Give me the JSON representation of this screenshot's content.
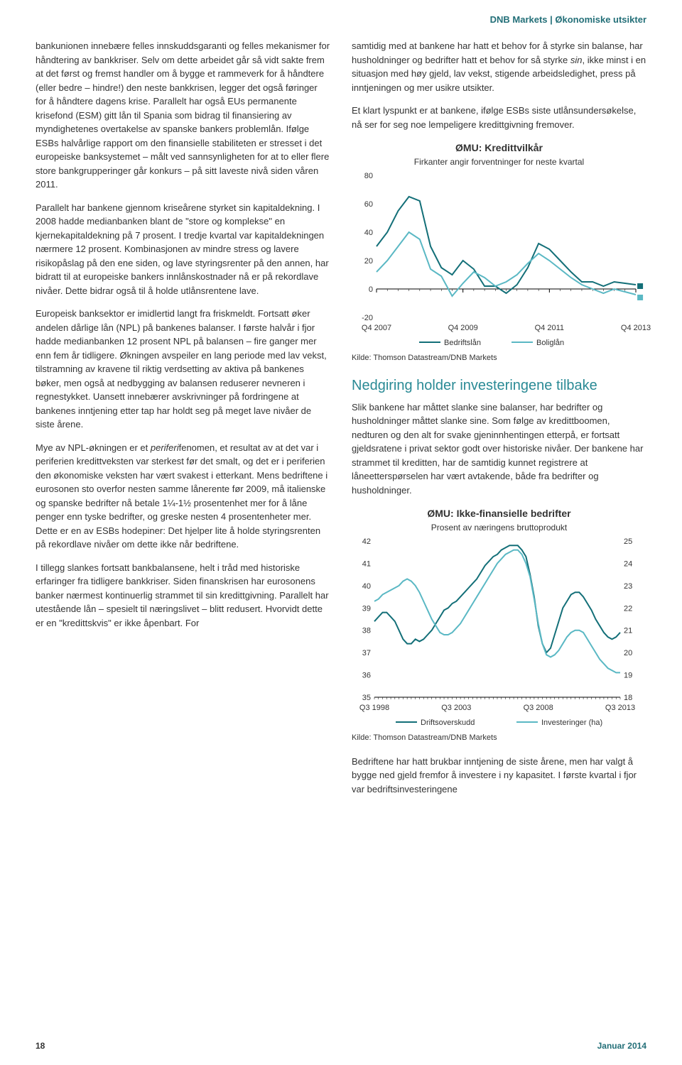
{
  "header": "DNB Markets | Økonomiske utsikter",
  "left": {
    "p1": "bankunionen innebære felles innskuddsgaranti og felles mekanismer for håndtering av bankkriser. Selv om dette arbeidet går så vidt sakte frem at det først og fremst handler om å bygge et rammeverk for å håndtere (eller bedre – hindre!) den neste bankkrisen, legger det også føringer for å håndtere dagens krise. Parallelt har også EUs permanente krisefond (ESM) gitt lån til Spania som bidrag til finansiering av myndighetenes overtakelse av spanske bankers problemlån. Ifølge ESBs halvårlige rapport om den finansielle stabiliteten er stresset i det europeiske banksystemet – målt ved sannsynligheten for at to eller flere store bankgrupperinger går konkurs – på sitt laveste nivå siden våren 2011.",
    "p2": "Parallelt har bankene gjennom kriseårene styrket sin kapitaldekning. I 2008 hadde medianbanken blant de \"store og komplekse\" en kjernekapitaldekning på 7 prosent. I tredje kvartal var kapitaldekningen nærmere 12 prosent. Kombinasjonen av mindre stress og lavere risikopåslag på den ene siden, og lave styringsrenter på den annen, har bidratt til at europeiske bankers innlånskostnader nå er på rekordlave nivåer. Dette bidrar også til å holde utlånsrentene lave.",
    "p3": "Europeisk banksektor er imidlertid langt fra friskmeldt. Fortsatt øker andelen dårlige lån (NPL) på bankenes balanser. I første halvår i fjor hadde medianbanken 12 prosent NPL på balansen – fire ganger mer enn fem år tidligere. Økningen avspeiler en lang periode med lav vekst, tilstramning av kravene til riktig verdsetting av aktiva på bankenes bøker, men også at nedbygging av balansen reduserer nevneren i regnestykket. Uansett innebærer avskrivninger på fordringene at bankenes inntjening etter tap har holdt seg på meget lave nivåer de siste årene.",
    "p4_html": "Mye av NPL-økningen er et <i>periferi</i>fenomen, et resultat av at det var i periferien kredittveksten var sterkest før det smalt, og det er i periferien den økonomiske veksten har vært svakest i etterkant. Mens bedriftene i eurosonen sto overfor nesten samme lånerente før 2009, må italienske og spanske bedrifter nå betale 1¼-1½ prosentenhet mer for å låne penger enn tyske bedrifter, og greske nesten 4 prosentenheter mer. Dette er en av ESBs hodepiner: Det hjelper lite å holde styringsrenten på rekordlave nivåer om dette ikke når bedriftene.",
    "p5": "I tillegg slankes fortsatt bankbalansene, helt i tråd med historiske erfaringer fra tidligere bankkriser. Siden finanskrisen har eurosonens banker nærmest kontinuerlig strammet til sin kredittgivning. Parallelt har utestående lån – spesielt til næringslivet – blitt redusert. Hvorvidt dette er en \"kredittskvis\" er ikke åpenbart. For"
  },
  "right": {
    "p1_html": "samtidig med at bankene har hatt et behov for å styrke sin balanse, har husholdninger og bedrifter hatt et behov for så styrke <i>sin</i>, ikke minst i en situasjon med høy gjeld, lav vekst, stigende arbeidsledighet, press på inntjeningen og mer usikre utsikter.",
    "p2": "Et klart lyspunkt er at bankene, ifølge ESBs siste utlånsundersøkelse, nå ser for seg noe lempeligere kredittgivning fremover.",
    "p3": "Slik bankene har måttet slanke sine balanser, har bedrifter og husholdninger måttet slanke sine. Som følge av kredittboomen, nedturen og den alt for svake gjeninnhentingen etterpå, er fortsatt gjeldsratene i privat sektor godt over historiske nivåer. Der bankene har strammet til kreditten, har de samtidig kunnet registrere at låneetterspørselen har vært avtakende, både fra bedrifter og husholdninger.",
    "p4": "Bedriftene har hatt brukbar inntjening de siste årene, men har valgt å bygge ned gjeld fremfor å investere i ny kapasitet. I første kvartal i fjor var bedriftsinvesteringene",
    "heading": "Nedgiring holder investeringene tilbake"
  },
  "chart1": {
    "title": "ØMU: Kredittvilkår",
    "subtitle": "Firkanter angir forventninger for neste kvartal",
    "source": "Kilde: Thomson Datastream/DNB Markets",
    "ylim": [
      -20,
      80
    ],
    "yticks": [
      -20,
      0,
      20,
      40,
      60,
      80
    ],
    "xticks": [
      "Q4 2007",
      "Q4 2009",
      "Q4 2011",
      "Q4 2013"
    ],
    "x_count": 25,
    "series": [
      {
        "name": "Bedriftslån",
        "color": "#136f78",
        "y": [
          30,
          40,
          55,
          65,
          62,
          30,
          15,
          10,
          20,
          14,
          2,
          2,
          -3,
          3,
          15,
          32,
          28,
          20,
          12,
          5,
          5,
          2,
          5,
          4,
          3
        ]
      },
      {
        "name": "Boliglån",
        "color": "#5ab8c4",
        "y": [
          12,
          20,
          30,
          40,
          35,
          14,
          9,
          -5,
          4,
          12,
          8,
          2,
          5,
          10,
          18,
          25,
          20,
          14,
          8,
          3,
          0,
          -3,
          0,
          -2,
          -4
        ]
      }
    ],
    "markers": [
      {
        "color": "#136f78",
        "x": 24.4,
        "y": 2
      },
      {
        "color": "#5ab8c4",
        "x": 24.4,
        "y": -6
      }
    ],
    "background": "#ffffff",
    "grid_color": "#000000"
  },
  "chart2": {
    "title": "ØMU: Ikke-finansielle bedrifter",
    "subtitle": "Prosent av næringens bruttoprodukt",
    "source": "Kilde: Thomson Datastream/DNB Markets",
    "ylim_left": [
      35,
      42
    ],
    "yticks_left": [
      35,
      36,
      37,
      38,
      39,
      40,
      41,
      42
    ],
    "ylim_right": [
      18,
      25
    ],
    "yticks_right": [
      18,
      19,
      20,
      21,
      22,
      23,
      24,
      25
    ],
    "xticks": [
      "Q3 1998",
      "Q3 2003",
      "Q3 2008",
      "Q3 2013"
    ],
    "x_count": 61,
    "series": [
      {
        "name": "Driftsoverskudd",
        "color": "#136f78",
        "axis": "left",
        "y": [
          38.4,
          38.6,
          38.8,
          38.8,
          38.6,
          38.4,
          38.0,
          37.6,
          37.4,
          37.4,
          37.6,
          37.5,
          37.6,
          37.8,
          38.0,
          38.3,
          38.6,
          38.9,
          39.0,
          39.2,
          39.3,
          39.5,
          39.7,
          39.9,
          40.1,
          40.3,
          40.6,
          40.9,
          41.1,
          41.3,
          41.4,
          41.6,
          41.7,
          41.8,
          41.8,
          41.8,
          41.6,
          41.3,
          40.5,
          39.5,
          38.2,
          37.4,
          37.0,
          37.2,
          37.8,
          38.4,
          39.0,
          39.3,
          39.6,
          39.7,
          39.7,
          39.5,
          39.2,
          38.9,
          38.5,
          38.2,
          37.9,
          37.7,
          37.6,
          37.7,
          37.9
        ]
      },
      {
        "name": "Investeringer (ha)",
        "color": "#5ab8c4",
        "axis": "right",
        "y": [
          22.3,
          22.4,
          22.6,
          22.7,
          22.8,
          22.9,
          23.0,
          23.2,
          23.3,
          23.2,
          23.0,
          22.7,
          22.3,
          21.9,
          21.5,
          21.2,
          20.9,
          20.8,
          20.8,
          20.9,
          21.1,
          21.3,
          21.6,
          21.9,
          22.2,
          22.5,
          22.8,
          23.1,
          23.4,
          23.7,
          24.0,
          24.2,
          24.4,
          24.5,
          24.6,
          24.6,
          24.4,
          24.0,
          23.4,
          22.4,
          21.3,
          20.4,
          19.9,
          19.8,
          19.9,
          20.1,
          20.4,
          20.7,
          20.9,
          21.0,
          21.0,
          20.9,
          20.6,
          20.3,
          20.0,
          19.7,
          19.5,
          19.3,
          19.2,
          19.1,
          19.1
        ]
      }
    ],
    "background": "#ffffff"
  },
  "footer": {
    "page": "18",
    "date": "Januar 2014"
  }
}
